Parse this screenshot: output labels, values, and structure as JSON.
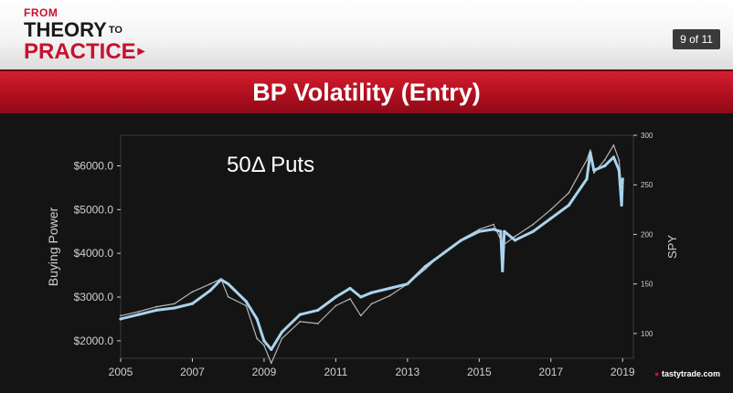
{
  "header": {
    "logo_from": "FROM",
    "logo_theory": "THEORY",
    "logo_to": "TO",
    "logo_practice": "PRACTICE",
    "page_indicator": "9 of 11"
  },
  "title": "BP Volatility (Entry)",
  "brand": "tastytrade.com",
  "colors": {
    "accent_red": "#c8102e",
    "bp_series": "#a9d4ee",
    "spy_series": "#b5b5b5"
  },
  "chart_data": {
    "type": "line",
    "annotation": "50Δ Puts",
    "ylabel_left": "Buying Power",
    "ylabel_right": "SPY",
    "xlim": [
      2005,
      2019.3
    ],
    "ylim_left": [
      1600,
      6700
    ],
    "ylim_right": [
      75,
      300
    ],
    "x_ticks": [
      2005,
      2007,
      2009,
      2011,
      2013,
      2015,
      2017,
      2019
    ],
    "x_tick_labels": [
      "2005",
      "2007",
      "2009",
      "2011",
      "2013",
      "2015",
      "2017",
      "2019"
    ],
    "y_left_ticks": [
      2000,
      3000,
      4000,
      5000,
      6000
    ],
    "y_left_tick_labels": [
      "$2000.0",
      "$3000.0",
      "$4000.0",
      "$5000.0",
      "$6000.0"
    ],
    "y_right_ticks": [
      100,
      150,
      200,
      250,
      300
    ],
    "y_right_tick_labels": [
      "100",
      "150",
      "200",
      "250",
      "300"
    ],
    "grid": false,
    "series": [
      {
        "axis": "left",
        "x": [
          2005.0,
          2005.5,
          2006.0,
          2006.5,
          2007.0,
          2007.5,
          2007.8,
          2008.0,
          2008.5,
          2008.8,
          2009.0,
          2009.2,
          2009.5,
          2010.0,
          2010.5,
          2011.0,
          2011.4,
          2011.7,
          2012.0,
          2012.5,
          2013.0,
          2013.5,
          2014.0,
          2014.5,
          2015.0,
          2015.4,
          2015.6,
          2015.65,
          2015.7,
          2016.0,
          2016.5,
          2017.0,
          2017.5,
          2018.0,
          2018.1,
          2018.2,
          2018.5,
          2018.75,
          2018.9,
          2018.97,
          2019.0
        ],
        "values": [
          2500,
          2600,
          2700,
          2750,
          2850,
          3150,
          3400,
          3300,
          2900,
          2500,
          2000,
          1800,
          2200,
          2600,
          2700,
          3000,
          3200,
          3000,
          3100,
          3200,
          3300,
          3700,
          4000,
          4300,
          4500,
          4550,
          4500,
          3600,
          4500,
          4300,
          4500,
          4800,
          5100,
          5700,
          6300,
          5900,
          6000,
          6200,
          5900,
          5100,
          5700
        ]
      },
      {
        "axis": "right",
        "x": [
          2005.0,
          2005.5,
          2006.0,
          2006.5,
          2007.0,
          2007.5,
          2007.8,
          2008.0,
          2008.5,
          2008.8,
          2009.0,
          2009.2,
          2009.5,
          2010.0,
          2010.5,
          2011.0,
          2011.4,
          2011.7,
          2012.0,
          2012.5,
          2013.0,
          2013.5,
          2014.0,
          2014.5,
          2015.0,
          2015.4,
          2015.6,
          2015.7,
          2016.0,
          2016.5,
          2017.0,
          2017.5,
          2018.0,
          2018.1,
          2018.2,
          2018.5,
          2018.75,
          2018.9,
          2018.97,
          2019.0
        ],
        "values": [
          118,
          122,
          127,
          130,
          142,
          150,
          155,
          137,
          128,
          95,
          88,
          70,
          95,
          112,
          110,
          128,
          135,
          118,
          130,
          138,
          150,
          165,
          182,
          195,
          205,
          210,
          195,
          190,
          198,
          210,
          225,
          242,
          275,
          285,
          262,
          275,
          290,
          275,
          245,
          250
        ]
      }
    ]
  }
}
